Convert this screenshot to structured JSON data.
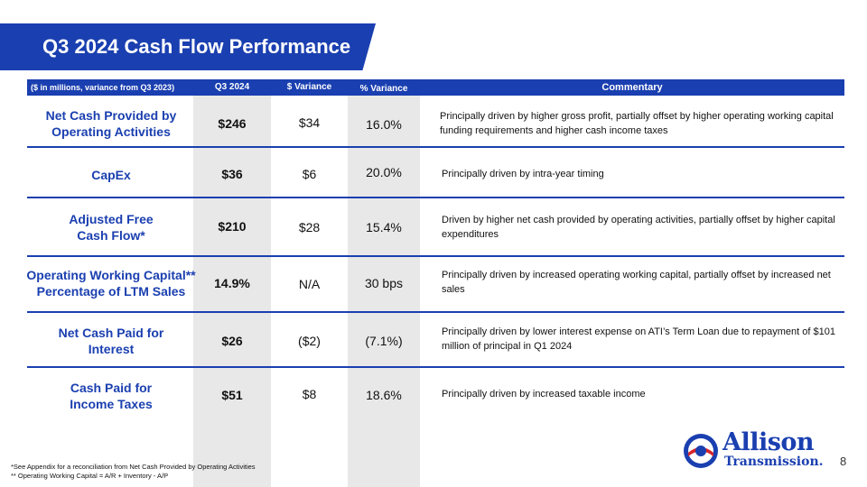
{
  "slide": {
    "title": "Q3 2024 Cash Flow Performance",
    "page_number": "8"
  },
  "table": {
    "headers": {
      "metric": "($ in millions, variance from Q3 2023)",
      "q3": "Q3 2024",
      "dollar_var": "$ Variance",
      "pct_var": "% Variance",
      "commentary": "Commentary"
    },
    "rows": [
      {
        "metric_line1": "Net Cash Provided by",
        "metric_line2": "Operating Activities",
        "q3": "$246",
        "dollar_var": "$34",
        "pct_var": "16.0%",
        "commentary": "Principally driven by higher gross profit, partially offset by higher operating working capital funding requirements and higher cash income taxes"
      },
      {
        "metric_line1": "CapEx",
        "metric_line2": "",
        "q3": "$36",
        "dollar_var": "$6",
        "pct_var": "20.0%",
        "commentary": "Principally driven by intra-year timing"
      },
      {
        "metric_line1": "Adjusted Free",
        "metric_line2": "Cash Flow*",
        "q3": "$210",
        "dollar_var": "$28",
        "pct_var": "15.4%",
        "commentary": "Driven by higher net cash provided by operating activities, partially offset by higher capital expenditures"
      },
      {
        "metric_line1": "Operating Working Capital**",
        "metric_line2": "Percentage of LTM Sales",
        "q3": "14.9%",
        "dollar_var": "N/A",
        "pct_var": "30 bps",
        "commentary": "Principally driven by increased operating working capital, partially offset by increased net sales"
      },
      {
        "metric_line1": "Net Cash Paid for",
        "metric_line2": "Interest",
        "q3": "$26",
        "dollar_var": "($2)",
        "pct_var": "(7.1%)",
        "commentary": "Principally driven by lower interest expense on ATI’s Term Loan due to repayment of $101 million of principal in Q1 2024"
      },
      {
        "metric_line1": "Cash Paid for",
        "metric_line2": "Income Taxes",
        "q3": "$51",
        "dollar_var": "$8",
        "pct_var": "18.6%",
        "commentary": "Principally driven by increased taxable income"
      }
    ]
  },
  "footnotes": {
    "note1": "*See Appendix for a reconciliation from Net Cash Provided by Operating Activities",
    "note2": "** Operating Working Capital = A/R + Inventory - A/P"
  },
  "logo": {
    "word1": "Allison",
    "word2": "Transmission."
  },
  "colors": {
    "brand_blue": "#1a3fb0",
    "brand_red": "#d6252b",
    "shade_gray": "#e8e8e8"
  }
}
